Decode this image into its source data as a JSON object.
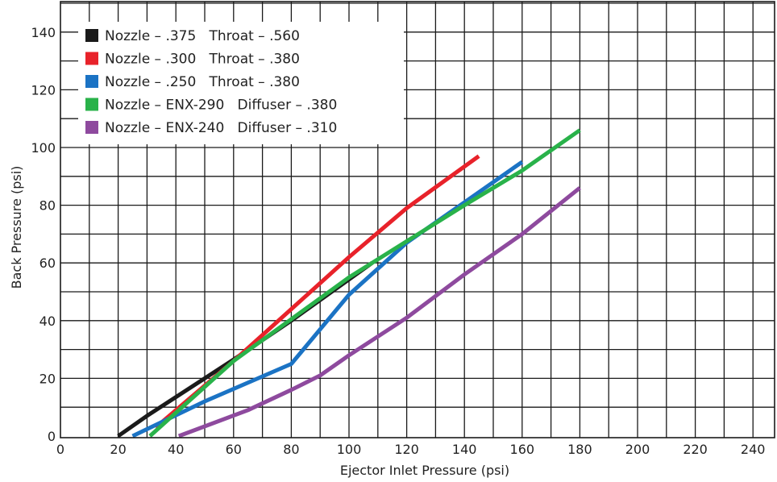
{
  "chart_data": {
    "type": "line",
    "xlabel": "Ejector Inlet Pressure (psi)",
    "ylabel": "Back Pressure (psi)",
    "xlim": [
      0,
      250
    ],
    "ylim": [
      0,
      150
    ],
    "x_ticks": [
      0,
      20,
      40,
      60,
      80,
      100,
      120,
      140,
      160,
      180,
      200,
      220,
      240
    ],
    "y_ticks": [
      0,
      20,
      40,
      60,
      80,
      100,
      120,
      140
    ],
    "x_grid_step": 10,
    "y_grid_step": 10,
    "grid": true,
    "legend_position": "top-left",
    "series": [
      {
        "name": "Nozzle – .375   Throat – .560",
        "color": "#1a1a1a",
        "points": [
          [
            20,
            0
          ],
          [
            30,
            7
          ],
          [
            60,
            26.5
          ],
          [
            80,
            40
          ],
          [
            108,
            60
          ]
        ]
      },
      {
        "name": "Nozzle – .300   Throat – .380",
        "color": "#e8222a",
        "points": [
          [
            33,
            3
          ],
          [
            60,
            26
          ],
          [
            80,
            44
          ],
          [
            100,
            62
          ],
          [
            120,
            79
          ],
          [
            145,
            97
          ]
        ]
      },
      {
        "name": "Nozzle – .250   Throat – .380",
        "color": "#1b73c4",
        "points": [
          [
            25,
            0
          ],
          [
            50,
            12
          ],
          [
            80,
            25
          ],
          [
            100,
            49
          ],
          [
            120,
            67
          ],
          [
            140,
            81
          ],
          [
            160,
            95
          ]
        ]
      },
      {
        "name": "Nozzle – ENX-290   Diffuser – .380",
        "color": "#29b24a",
        "points": [
          [
            31,
            0
          ],
          [
            60,
            26
          ],
          [
            100,
            55
          ],
          [
            140,
            80
          ],
          [
            160,
            92
          ],
          [
            180,
            106
          ]
        ]
      },
      {
        "name": "Nozzle – ENX-240   Diffuser – .310",
        "color": "#8e4a9e",
        "points": [
          [
            41,
            0
          ],
          [
            65,
            9
          ],
          [
            80,
            16
          ],
          [
            90,
            21
          ],
          [
            100,
            28
          ],
          [
            120,
            41
          ],
          [
            140,
            56
          ],
          [
            160,
            70
          ],
          [
            180,
            86
          ]
        ]
      }
    ]
  }
}
